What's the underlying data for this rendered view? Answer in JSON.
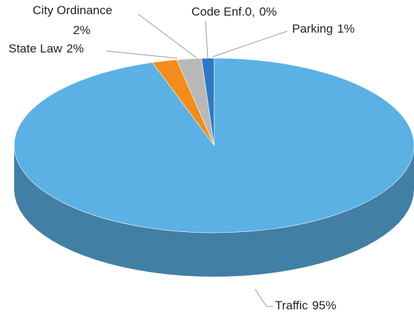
{
  "chart_data": {
    "type": "pie",
    "categories": [
      "Traffic",
      "State Law",
      "City Ordinance",
      "Code Enf.0,",
      "Parking"
    ],
    "values": [
      95,
      2,
      2,
      0,
      1
    ],
    "value_labels": [
      "95%",
      "2%",
      "2%",
      "0%",
      "1%"
    ],
    "colors": [
      "#5bb0e4",
      "#f28c1c",
      "#b8b8b8",
      "#ffc000",
      "#2e78c4"
    ]
  }
}
